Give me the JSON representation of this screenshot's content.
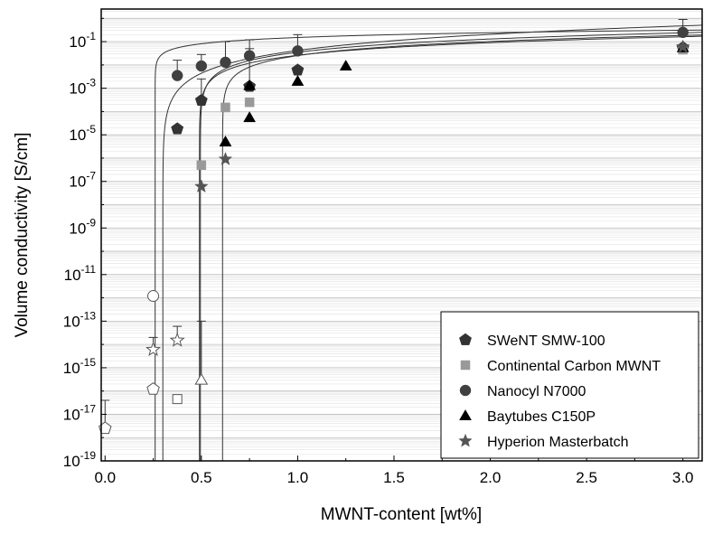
{
  "chart_data": {
    "type": "scatter",
    "xlabel": "MWNT-content [wt%]",
    "ylabel": "Volume conductivity [S/cm]",
    "xlim": [
      -0.02,
      3.1
    ],
    "ylim_log10": [
      -19,
      0.4
    ],
    "y_scale": "log",
    "grid": "horizontal",
    "legend_position": "bottom-right",
    "x_ticks": [
      {
        "value": 0.0,
        "label": "0.0"
      },
      {
        "value": 0.5,
        "label": "0.5"
      },
      {
        "value": 1.0,
        "label": "1.0"
      },
      {
        "value": 1.5,
        "label": "1.5"
      },
      {
        "value": 2.0,
        "label": "2.0"
      },
      {
        "value": 2.5,
        "label": "2.5"
      },
      {
        "value": 3.0,
        "label": "3.0"
      }
    ],
    "y_ticks": [
      {
        "exp": -1,
        "base": "10",
        "sup": "-1"
      },
      {
        "exp": -3,
        "base": "10",
        "sup": "-3"
      },
      {
        "exp": -5,
        "base": "10",
        "sup": "-5"
      },
      {
        "exp": -7,
        "base": "10",
        "sup": "-7"
      },
      {
        "exp": -9,
        "base": "10",
        "sup": "-9"
      },
      {
        "exp": -11,
        "base": "10",
        "sup": "-11"
      },
      {
        "exp": -13,
        "base": "10",
        "sup": "-13"
      },
      {
        "exp": -15,
        "base": "10",
        "sup": "-15"
      },
      {
        "exp": -17,
        "base": "10",
        "sup": "-17"
      },
      {
        "exp": -19,
        "base": "10",
        "sup": "-19"
      }
    ],
    "series": [
      {
        "name": "SWeNT SMW-100",
        "marker": "pentagon",
        "color": "#333333",
        "percolation": [
          0.0,
          0.25
        ],
        "fit_curve": {
          "pc": 0.3,
          "a": -1.1,
          "t": 1.8
        },
        "points": [
          {
            "x": 0.375,
            "y": 1.8e-05,
            "filled": true
          },
          {
            "x": 0.5,
            "y": 0.0003,
            "filled": true,
            "err_up": 0.0025
          },
          {
            "x": 0.75,
            "y": 0.0012,
            "filled": true,
            "err_up": 0.05
          },
          {
            "x": 1.0,
            "y": 0.006,
            "filled": true
          },
          {
            "x": 3.0,
            "y": 0.055,
            "filled": true
          },
          {
            "x": 0.0,
            "y": 2.5e-18,
            "filled": false,
            "err_up": 4e-17
          },
          {
            "x": 0.25,
            "y": 1.2e-16,
            "filled": false
          }
        ]
      },
      {
        "name": "Continental Carbon MWNT",
        "marker": "square",
        "color": "#999999",
        "fit_curve": {
          "pc": 0.495,
          "a": -1.1,
          "t": 1.2
        },
        "points": [
          {
            "x": 0.5,
            "y": 5e-07,
            "filled": true
          },
          {
            "x": 0.625,
            "y": 0.00015,
            "filled": true
          },
          {
            "x": 0.75,
            "y": 0.00025,
            "filled": true
          },
          {
            "x": 3.0,
            "y": 0.045,
            "filled": true
          },
          {
            "x": 0.375,
            "y": 4.5e-17,
            "filled": false
          }
        ]
      },
      {
        "name": "Nanocyl N7000",
        "marker": "circle",
        "color": "#404040",
        "fit_curve": {
          "pc": 0.26,
          "a": -0.75,
          "t": 0.55
        },
        "points": [
          {
            "x": 0.375,
            "y": 0.0035,
            "filled": true,
            "err_up": 0.016
          },
          {
            "x": 0.5,
            "y": 0.009,
            "filled": true,
            "err_up": 0.028
          },
          {
            "x": 0.625,
            "y": 0.013,
            "filled": true,
            "err_up": 0.1
          },
          {
            "x": 0.75,
            "y": 0.025,
            "filled": true,
            "err_up": 0.12
          },
          {
            "x": 1.0,
            "y": 0.04,
            "filled": true,
            "err_up": 0.2
          },
          {
            "x": 3.0,
            "y": 0.25,
            "filled": true,
            "err_up": 0.9
          },
          {
            "x": 0.25,
            "y": 1.2e-12,
            "filled": false
          }
        ]
      },
      {
        "name": "Baytubes C150P",
        "marker": "triangle",
        "color": "#000000",
        "fit_curve": {
          "pc": 0.61,
          "a": -1.15,
          "t": 1.1
        },
        "points": [
          {
            "x": 0.625,
            "y": 5e-06,
            "filled": true
          },
          {
            "x": 0.75,
            "y": 5.5e-05,
            "filled": true
          },
          {
            "x": 0.75,
            "y": 0.0013,
            "filled": true
          },
          {
            "x": 1.0,
            "y": 0.002,
            "filled": true
          },
          {
            "x": 1.25,
            "y": 0.009,
            "filled": true
          },
          {
            "x": 3.0,
            "y": 0.055,
            "filled": true
          },
          {
            "x": 0.5,
            "y": 3e-16,
            "filled": false,
            "err_up": 1e-13
          }
        ]
      },
      {
        "name": "Hyperion Masterbatch",
        "marker": "star",
        "color": "#555555",
        "fit_curve": {
          "pc": 0.49,
          "a": -1.25,
          "t": 1.15
        },
        "points": [
          {
            "x": 0.5,
            "y": 6e-08,
            "filled": true
          },
          {
            "x": 0.625,
            "y": 9e-07,
            "filled": true
          },
          {
            "x": 3.0,
            "y": 0.06,
            "filled": true
          },
          {
            "x": 0.25,
            "y": 6e-15,
            "filled": false,
            "err_up": 2e-14
          },
          {
            "x": 0.375,
            "y": 1.5e-14,
            "filled": false,
            "err_up": 6e-14
          }
        ]
      }
    ]
  }
}
